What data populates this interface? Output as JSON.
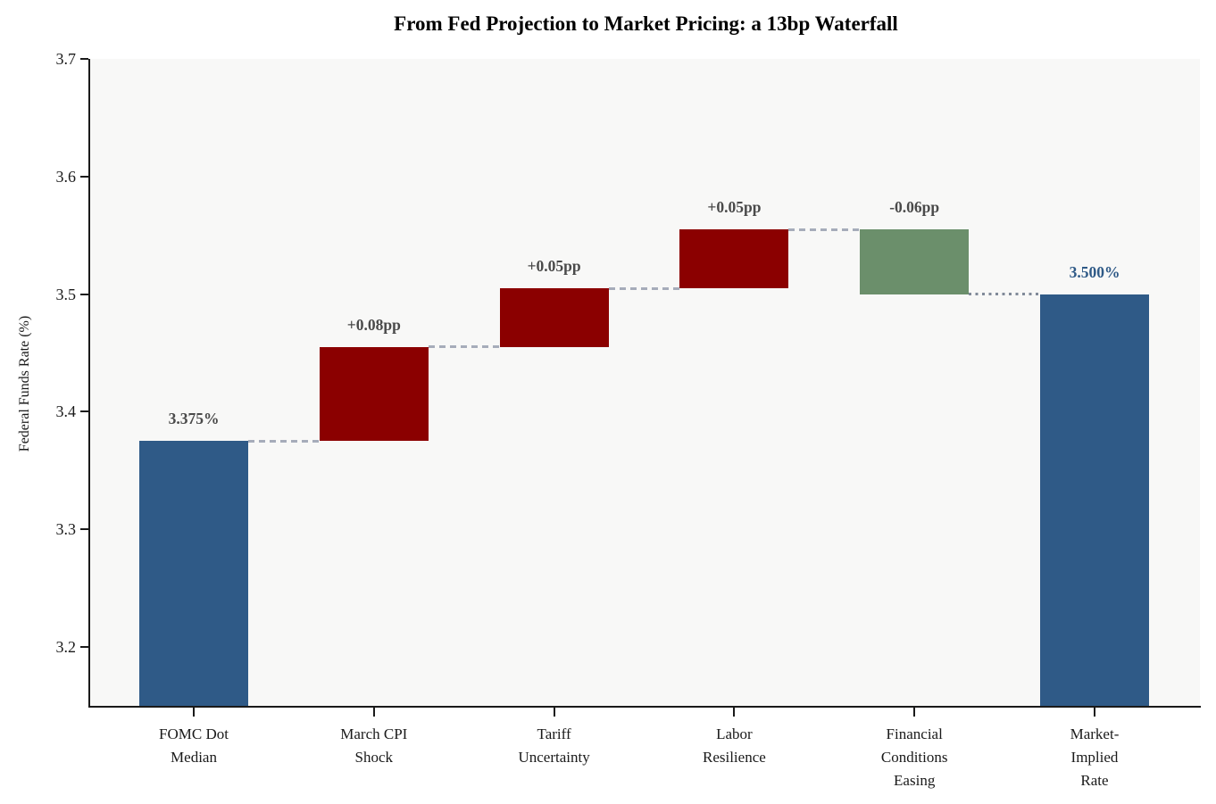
{
  "chart_data": {
    "type": "bar",
    "subtype": "waterfall",
    "title": "From Fed Projection to Market Pricing: a 13bp Waterfall",
    "xlabel": "",
    "ylabel": "Federal Funds Rate (%)",
    "ylim": [
      3.15,
      3.7
    ],
    "yticks": [
      {
        "value": 3.2,
        "label": "3.2"
      },
      {
        "value": 3.3,
        "label": "3.3"
      },
      {
        "value": 3.4,
        "label": "3.4"
      },
      {
        "value": 3.5,
        "label": "3.5"
      },
      {
        "value": 3.6,
        "label": "3.6"
      },
      {
        "value": 3.7,
        "label": "3.7"
      }
    ],
    "grid": false,
    "legend": "none",
    "categories": [
      [
        "FOMC Dot",
        "Median"
      ],
      [
        "March CPI",
        "Shock"
      ],
      [
        "Tariff",
        "Uncertainty"
      ],
      [
        "Labor",
        "Resilience"
      ],
      [
        "Financial",
        "Conditions",
        "Easing"
      ],
      [
        "Market-",
        "Implied",
        "Rate"
      ]
    ],
    "bars": [
      {
        "name": "FOMC Dot Median",
        "kind": "total",
        "start": 3.15,
        "end": 3.375,
        "value": 3.375,
        "display": "3.375%",
        "color": "total",
        "label_color": "gray"
      },
      {
        "name": "March CPI Shock",
        "kind": "increase",
        "start": 3.375,
        "end": 3.455,
        "delta": 0.08,
        "display": "+0.08pp",
        "color": "increase",
        "label_color": "gray"
      },
      {
        "name": "Tariff Uncertainty",
        "kind": "increase",
        "start": 3.455,
        "end": 3.505,
        "delta": 0.05,
        "display": "+0.05pp",
        "color": "increase",
        "label_color": "gray"
      },
      {
        "name": "Labor Resilience",
        "kind": "increase",
        "start": 3.505,
        "end": 3.555,
        "delta": 0.05,
        "display": "+0.05pp",
        "color": "increase",
        "label_color": "gray"
      },
      {
        "name": "Financial Conditions Easing",
        "kind": "decrease",
        "start": 3.555,
        "end": 3.5,
        "delta": -0.06,
        "display": "-0.06pp",
        "color": "decrease",
        "label_color": "gray"
      },
      {
        "name": "Market-Implied Rate",
        "kind": "total",
        "start": 3.15,
        "end": 3.5,
        "value": 3.5,
        "display": "3.500%",
        "color": "total",
        "label_color": "blue"
      }
    ],
    "connectors": [
      {
        "level": 3.375,
        "after_bar": 0,
        "style": "dashed"
      },
      {
        "level": 3.455,
        "after_bar": 1,
        "style": "dashed"
      },
      {
        "level": 3.505,
        "after_bar": 2,
        "style": "dashed"
      },
      {
        "level": 3.555,
        "after_bar": 3,
        "style": "dashed"
      },
      {
        "level": 3.5,
        "after_bar": 4,
        "style": "dotted"
      }
    ],
    "colors": {
      "total": "#2f5a87",
      "increase": "#8b0000",
      "decrease": "#6b8f6b",
      "connector_dashed": "#a6acba",
      "connector_dotted": "#818a99",
      "label_gray": "#4a4a4a",
      "label_blue": "#2f5a87",
      "plot_bg": "#f8f8f7",
      "spine": "#1a1a1a",
      "tick_label": "#1a1a1a"
    }
  }
}
